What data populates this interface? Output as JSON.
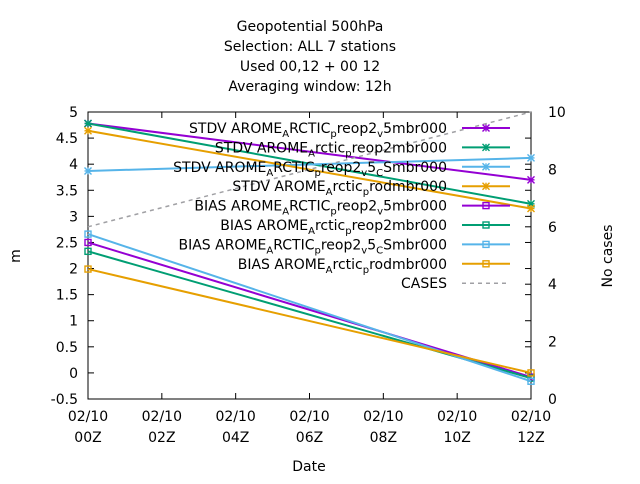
{
  "chart_data": {
    "type": "line",
    "title_lines": [
      "Geopotential 500hPa",
      "Selection: ALL      7 stations",
      "Used  00,12  + 00 12",
      "Averaging window: 12h"
    ],
    "xlabel": "Date",
    "ylabel": "m",
    "y2label": "No cases",
    "x_ticks": [
      {
        "top": "02/10",
        "bottom": "00Z"
      },
      {
        "top": "02/10",
        "bottom": "02Z"
      },
      {
        "top": "02/10",
        "bottom": "04Z"
      },
      {
        "top": "02/10",
        "bottom": "06Z"
      },
      {
        "top": "02/10",
        "bottom": "08Z"
      },
      {
        "top": "02/10",
        "bottom": "10Z"
      },
      {
        "top": "02/10",
        "bottom": "12Z"
      }
    ],
    "x_hours": [
      0,
      2,
      4,
      6,
      8,
      10,
      12
    ],
    "xlim": [
      0,
      12
    ],
    "ylim": [
      -0.5,
      5
    ],
    "y_ticks": [
      -0.5,
      0,
      0.5,
      1,
      1.5,
      2,
      2.5,
      3,
      3.5,
      4,
      4.5,
      5
    ],
    "y_tick_labels": [
      "-0.5",
      "0",
      "0.5",
      "1",
      "1.5",
      "2",
      "2.5",
      "3",
      "3.5",
      "4",
      "4.5",
      "5"
    ],
    "y2lim": [
      0,
      10
    ],
    "y2_ticks": [
      0,
      2,
      4,
      6,
      8,
      10
    ],
    "y2_tick_labels": [
      "0",
      "2",
      "4",
      "6",
      "8",
      "10"
    ],
    "grid": false,
    "legend_position": "top-right",
    "series": [
      {
        "name": "STDV AROME_ARCTIC_preop2_v5mbr000",
        "color": "#9400d3",
        "marker": "star",
        "axis": "y1",
        "x": [
          0,
          12
        ],
        "y": [
          4.78,
          3.7
        ]
      },
      {
        "name": "STDV AROME_Arctic_preop2mbr000",
        "color": "#009e73",
        "marker": "star",
        "axis": "y1",
        "x": [
          0,
          12
        ],
        "y": [
          4.78,
          3.24
        ]
      },
      {
        "name": "STDV AROME_ARCTIC_preop2_v5_CSmbr000",
        "color": "#56b4e9",
        "marker": "star",
        "axis": "y1",
        "x": [
          0,
          12
        ],
        "y": [
          3.87,
          4.12
        ]
      },
      {
        "name": "STDV AROME_Arctic_prodmbr000",
        "color": "#e69f00",
        "marker": "star",
        "axis": "y1",
        "x": [
          0,
          12
        ],
        "y": [
          4.64,
          3.15
        ]
      },
      {
        "name": "BIAS AROME_ARCTIC_preop2_v5mbr000",
        "color": "#9400d3",
        "marker": "square",
        "axis": "y1",
        "x": [
          0,
          12
        ],
        "y": [
          2.5,
          -0.08
        ]
      },
      {
        "name": "BIAS AROME_Arctic_preop2mbr000",
        "color": "#009e73",
        "marker": "square",
        "axis": "y1",
        "x": [
          0,
          12
        ],
        "y": [
          2.33,
          -0.1
        ]
      },
      {
        "name": "BIAS AROME_ARCTIC_preop2_v5_CSmbr000",
        "color": "#56b4e9",
        "marker": "square",
        "axis": "y1",
        "x": [
          0,
          12
        ],
        "y": [
          2.66,
          -0.16
        ]
      },
      {
        "name": "BIAS AROME_Arctic_prodmbr000",
        "color": "#e69f00",
        "marker": "square",
        "axis": "y1",
        "x": [
          0,
          12
        ],
        "y": [
          1.99,
          0.0
        ]
      },
      {
        "name": "CASES",
        "color": "#a0a0a4",
        "marker": "none",
        "dashed": true,
        "axis": "y2",
        "x": [
          0,
          12
        ],
        "y": [
          6,
          10
        ]
      }
    ],
    "legend_labels": [
      {
        "before": "STDV AROME",
        "sub1": "A",
        "mid1": "RCTIC",
        "sub2": "p",
        "mid2": "reop2",
        "sub3": "v",
        "end": "5mbr000"
      },
      {
        "before": "STDV AROME",
        "sub1": "A",
        "mid1": "rctic",
        "sub2": "p",
        "mid2": "reop2mbr000",
        "sub3": "",
        "end": ""
      },
      {
        "before": "STDV AROME",
        "sub1": "A",
        "mid1": "RCTIC",
        "sub2": "p",
        "mid2": "reop2",
        "sub3": "v",
        "end": "5",
        "sub4": "C",
        "end2": "Smbr000"
      },
      {
        "before": "STDV AROME",
        "sub1": "A",
        "mid1": "rctic",
        "sub2": "p",
        "mid2": "rodmbr000",
        "sub3": "",
        "end": ""
      },
      {
        "before": "BIAS AROME",
        "sub1": "A",
        "mid1": "RCTIC",
        "sub2": "p",
        "mid2": "reop2",
        "sub3": "v",
        "end": "5mbr000"
      },
      {
        "before": "BIAS AROME",
        "sub1": "A",
        "mid1": "rctic",
        "sub2": "p",
        "mid2": "reop2mbr000",
        "sub3": "",
        "end": ""
      },
      {
        "before": "BIAS AROME",
        "sub1": "A",
        "mid1": "RCTIC",
        "sub2": "p",
        "mid2": "reop2",
        "sub3": "v",
        "end": "5",
        "sub4": "C",
        "end2": "Smbr000"
      },
      {
        "before": "BIAS AROME",
        "sub1": "A",
        "mid1": "rctic",
        "sub2": "p",
        "mid2": "rodmbr000",
        "sub3": "",
        "end": ""
      },
      {
        "before": "CASES",
        "sub1": "",
        "mid1": "",
        "sub2": "",
        "mid2": "",
        "sub3": "",
        "end": ""
      }
    ]
  }
}
